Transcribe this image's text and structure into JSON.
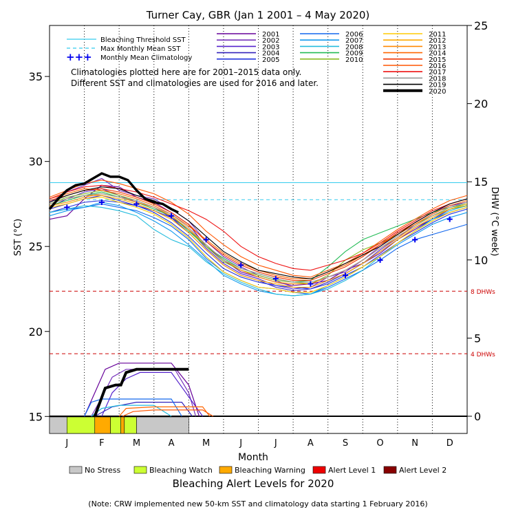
{
  "chart_data": {
    "type": "line",
    "title": "Turner Cay, GBR      (Jan 1 2001 – 4 May 2020)",
    "xlabel": "Month",
    "ylabel_left": "SST (°C)",
    "ylabel_right": "DHW (°C week)",
    "xlim": [
      0,
      12
    ],
    "ylim_left": [
      14,
      38
    ],
    "ylim_right": [
      -1.1,
      25
    ],
    "months": [
      "J",
      "F",
      "M",
      "A",
      "M",
      "J",
      "J",
      "A",
      "S",
      "O",
      "N",
      "D"
    ],
    "yticks_left": [
      15,
      20,
      25,
      30,
      35
    ],
    "yticks_right": [
      0,
      5,
      10,
      15,
      20,
      25
    ],
    "bleaching_threshold_sst": 28.75,
    "max_monthly_mean_sst": 27.75,
    "dhw_reference_lines": [
      {
        "label": "8 DHWs",
        "dhw": 8
      },
      {
        "label": "4 DHWs",
        "dhw": 4
      }
    ],
    "line_legend": [
      {
        "name": "Bleaching Threshold SST",
        "color": "#33ccee",
        "style": "solid"
      },
      {
        "name": "Max Monthly Mean SST",
        "color": "#33ccee",
        "style": "dashed"
      },
      {
        "name": "Monthly Mean Climatology",
        "color": "#0000ee",
        "style": "plus"
      }
    ],
    "note_lines": [
      "Climatologies plotted here are for 2001–2015 data only.",
      "Different SST and climatologies are used for 2016 and later."
    ],
    "climatology": {
      "x": [
        0.5,
        1.5,
        2.5,
        3.5,
        4.5,
        5.5,
        6.5,
        7.5,
        8.5,
        9.5,
        10.5,
        11.5
      ],
      "y": [
        27.3,
        27.6,
        27.5,
        26.8,
        25.4,
        23.9,
        23.1,
        22.8,
        23.3,
        24.2,
        25.4,
        26.6
      ]
    },
    "years": [
      {
        "name": "2001",
        "color": "#660099"
      },
      {
        "name": "2002",
        "color": "#7733bb"
      },
      {
        "name": "2003",
        "color": "#5522cc"
      },
      {
        "name": "2004",
        "color": "#3322bb"
      },
      {
        "name": "2005",
        "color": "#2233dd"
      },
      {
        "name": "2006",
        "color": "#1166ee"
      },
      {
        "name": "2007",
        "color": "#1199ee"
      },
      {
        "name": "2008",
        "color": "#22bbdd"
      },
      {
        "name": "2009",
        "color": "#22bb55"
      },
      {
        "name": "2010",
        "color": "#88bb22"
      },
      {
        "name": "2011",
        "color": "#ffcc00"
      },
      {
        "name": "2012",
        "color": "#ffaa00"
      },
      {
        "name": "2013",
        "color": "#ff8800"
      },
      {
        "name": "2014",
        "color": "#ff6600"
      },
      {
        "name": "2015",
        "color": "#ee3300"
      },
      {
        "name": "2016",
        "color": "#ff5500"
      },
      {
        "name": "2017",
        "color": "#ee1111"
      },
      {
        "name": "2018",
        "color": "#999999"
      },
      {
        "name": "2019",
        "color": "#000000"
      },
      {
        "name": "2020",
        "color": "#000000",
        "bold": true
      }
    ],
    "sst_x": [
      0,
      0.5,
      1,
      1.5,
      2,
      2.5,
      3,
      3.5,
      4,
      4.5,
      5,
      5.5,
      6,
      6.5,
      7,
      7.5,
      8,
      8.5,
      9,
      9.5,
      10,
      10.5,
      11,
      11.5,
      12
    ],
    "sst_series": {
      "2001": [
        26.6,
        26.8,
        27.8,
        28.6,
        28.5,
        27.9,
        27.6,
        27.0,
        26.3,
        25.0,
        24.2,
        23.5,
        23.2,
        22.9,
        22.7,
        22.8,
        23.0,
        23.6,
        24.0,
        24.6,
        25.4,
        26.0,
        26.6,
        27.2,
        27.4
      ],
      "2002": [
        27.6,
        28.2,
        28.6,
        29.0,
        28.3,
        28.0,
        27.8,
        27.2,
        26.5,
        25.3,
        24.4,
        23.8,
        23.3,
        23.0,
        22.6,
        22.6,
        23.2,
        23.5,
        24.2,
        25.0,
        25.8,
        26.4,
        27.0,
        27.4,
        27.6
      ],
      "2003": [
        27.3,
        27.8,
        28.2,
        28.4,
        28.0,
        27.6,
        27.3,
        26.7,
        26.0,
        24.9,
        24.0,
        23.4,
        23.1,
        22.7,
        22.5,
        22.6,
        23.0,
        23.4,
        24.0,
        24.8,
        25.5,
        26.3,
        26.9,
        27.4,
        27.6
      ],
      "2004": [
        27.2,
        27.5,
        27.8,
        28.0,
        27.7,
        27.4,
        27.1,
        26.7,
        25.8,
        24.8,
        23.9,
        23.3,
        23.0,
        22.6,
        22.4,
        22.5,
        22.9,
        23.4,
        24.0,
        24.7,
        25.4,
        26.1,
        26.6,
        27.0,
        27.3
      ],
      "2005": [
        27.0,
        27.3,
        27.6,
        27.7,
        27.6,
        27.4,
        27.0,
        26.4,
        25.6,
        24.6,
        23.7,
        23.2,
        22.9,
        22.7,
        22.6,
        22.5,
        22.8,
        23.3,
        23.8,
        24.5,
        25.2,
        25.8,
        26.4,
        26.9,
        27.2
      ],
      "2006": [
        27.0,
        27.2,
        27.3,
        27.5,
        27.3,
        27.1,
        26.7,
        26.2,
        25.4,
        24.3,
        23.5,
        23.0,
        22.6,
        22.5,
        22.3,
        22.2,
        22.6,
        23.1,
        23.6,
        24.2,
        24.9,
        25.4,
        25.7,
        26.0,
        26.3
      ],
      "2007": [
        26.8,
        27.1,
        27.3,
        27.6,
        27.4,
        27.0,
        26.5,
        25.9,
        25.1,
        24.2,
        23.3,
        22.8,
        22.4,
        22.2,
        22.1,
        22.2,
        22.7,
        23.2,
        23.8,
        24.4,
        25.1,
        25.7,
        26.3,
        26.7,
        27.0
      ],
      "2008": [
        27.0,
        27.2,
        27.4,
        27.3,
        27.1,
        26.8,
        26.0,
        25.4,
        25.0,
        24.1,
        23.4,
        22.9,
        22.5,
        22.2,
        22.1,
        22.2,
        22.5,
        23.0,
        23.6,
        24.4,
        25.2,
        25.9,
        26.6,
        27.1,
        27.4
      ],
      "2009": [
        27.4,
        27.7,
        28.0,
        28.2,
        27.9,
        27.6,
        27.2,
        26.8,
        25.9,
        25.0,
        24.3,
        23.7,
        23.4,
        23.1,
        22.9,
        23.0,
        23.8,
        24.7,
        25.4,
        25.8,
        26.2,
        26.6,
        27.0,
        27.3,
        27.5
      ],
      "2010": [
        27.5,
        27.9,
        28.1,
        28.3,
        28.0,
        27.7,
        27.3,
        26.8,
        26.0,
        25.0,
        24.1,
        23.6,
        23.3,
        23.0,
        22.9,
        22.8,
        23.3,
        24.2,
        24.8,
        25.2,
        25.7,
        26.3,
        26.8,
        27.2,
        27.4
      ],
      "2011": [
        27.3,
        27.5,
        27.8,
        27.9,
        27.6,
        27.3,
        26.9,
        26.3,
        25.5,
        24.4,
        23.5,
        23.0,
        22.6,
        22.5,
        22.3,
        22.3,
        22.7,
        23.2,
        23.8,
        24.4,
        25.2,
        25.9,
        26.5,
        27.0,
        27.3
      ],
      "2012": [
        27.5,
        27.8,
        28.0,
        28.0,
        27.8,
        27.5,
        27.1,
        26.6,
        25.8,
        24.8,
        23.9,
        23.3,
        23.0,
        22.8,
        22.6,
        22.6,
        23.0,
        23.4,
        24.0,
        24.7,
        25.4,
        26.1,
        26.7,
        27.2,
        27.5
      ],
      "2013": [
        27.4,
        27.6,
        27.9,
        28.1,
        27.9,
        27.6,
        27.3,
        26.8,
        26.0,
        25.1,
        24.2,
        23.6,
        23.2,
        22.9,
        22.8,
        22.8,
        23.2,
        23.6,
        24.2,
        24.9,
        25.5,
        26.2,
        26.8,
        27.3,
        27.6
      ],
      "2014": [
        27.8,
        28.1,
        28.4,
        28.3,
        28.1,
        27.8,
        27.4,
        26.9,
        26.2,
        25.4,
        24.6,
        24.0,
        23.6,
        23.3,
        23.1,
        23.1,
        23.5,
        23.9,
        24.5,
        25.1,
        25.7,
        26.3,
        26.9,
        27.4,
        27.7
      ],
      "2015": [
        27.7,
        28.0,
        28.3,
        28.4,
        28.2,
        27.9,
        27.5,
        27.0,
        26.3,
        25.3,
        24.5,
        23.9,
        23.5,
        23.2,
        23.0,
        23.0,
        23.4,
        23.8,
        24.4,
        25.1,
        25.8,
        26.4,
        27.0,
        27.5,
        27.8
      ],
      "2016": [
        27.9,
        28.3,
        28.7,
        28.9,
        28.7,
        28.4,
        28.1,
        27.6,
        26.9,
        25.9,
        25.1,
        24.4,
        23.9,
        23.6,
        23.3,
        23.2,
        23.6,
        24.0,
        24.6,
        25.3,
        26.0,
        26.6,
        27.2,
        27.7,
        28.0
      ],
      "2017": [
        27.8,
        28.2,
        28.5,
        28.6,
        28.4,
        28.2,
        27.9,
        27.5,
        27.1,
        26.6,
        25.9,
        25.0,
        24.4,
        24.0,
        23.7,
        23.6,
        23.9,
        24.2,
        24.6,
        25.2,
        25.9,
        26.5,
        27.1,
        27.5,
        27.8
      ],
      "2018": [
        27.5,
        27.8,
        28.0,
        28.1,
        27.9,
        27.7,
        27.3,
        26.9,
        26.1,
        25.1,
        24.2,
        23.7,
        23.4,
        23.1,
        22.9,
        22.9,
        23.2,
        23.6,
        24.2,
        24.9,
        25.6,
        26.2,
        26.8,
        27.3,
        27.6
      ],
      "2019": [
        27.6,
        28.0,
        28.3,
        28.5,
        28.4,
        28.0,
        27.7,
        27.2,
        26.5,
        25.6,
        24.7,
        24.1,
        23.6,
        23.4,
        23.2,
        23.1,
        23.5,
        24.0,
        24.5,
        25.0,
        25.7,
        26.4,
        27.0,
        27.5,
        27.8
      ]
    },
    "sst_2020": {
      "x": [
        0,
        0.25,
        0.5,
        0.75,
        1.0,
        1.25,
        1.5,
        1.75,
        2.0,
        2.25,
        2.5,
        2.75,
        3.0,
        3.25,
        3.5,
        3.7
      ],
      "y": [
        27.2,
        27.8,
        28.3,
        28.6,
        28.7,
        29.0,
        29.3,
        29.1,
        29.1,
        28.9,
        28.3,
        27.8,
        27.6,
        27.5,
        27.2,
        27.0
      ]
    },
    "dhw_series": {
      "2001": {
        "x": [
          1.0,
          1.3,
          1.6,
          2.0,
          2.5,
          3.0,
          3.5,
          4.0,
          4.3
        ],
        "y": [
          0,
          1.5,
          3.0,
          3.4,
          3.4,
          3.4,
          3.4,
          2.0,
          0
        ]
      },
      "2002": {
        "x": [
          1.2,
          1.5,
          1.8,
          2.2,
          3.0,
          3.6,
          4.0,
          4.2
        ],
        "y": [
          0,
          1.2,
          2.5,
          3.0,
          3.0,
          3.0,
          1.5,
          0
        ]
      },
      "2003": {
        "x": [
          1.5,
          1.8,
          2.2,
          2.6,
          3.0,
          3.5,
          4.4
        ],
        "y": [
          0,
          1.5,
          2.4,
          2.8,
          2.8,
          2.8,
          0
        ]
      },
      "2004": {
        "x": [
          1.3,
          1.8,
          2.5,
          3.3,
          3.8,
          4.1
        ],
        "y": [
          0,
          0.6,
          0.9,
          0.9,
          0.9,
          0
        ]
      },
      "2006": {
        "x": [
          1.0,
          1.2,
          1.5,
          2.0,
          3.0,
          3.5,
          3.8
        ],
        "y": [
          0,
          0.9,
          1.1,
          1.1,
          1.1,
          1.1,
          0
        ]
      },
      "2008": {
        "x": [
          1.2,
          1.5,
          2.0,
          3.0,
          3.5
        ],
        "y": [
          0,
          0.5,
          0.7,
          0.7,
          0
        ]
      },
      "2014": {
        "x": [
          2.0,
          2.2,
          3.0,
          4.4,
          4.6
        ],
        "y": [
          0,
          0.5,
          0.6,
          0.6,
          0
        ]
      },
      "2016": {
        "x": [
          2.1,
          2.4,
          3.0,
          4.4,
          4.7
        ],
        "y": [
          0,
          0.3,
          0.4,
          0.4,
          0
        ]
      },
      "2020": {
        "x": [
          1.3,
          1.6,
          1.9,
          2.05,
          2.2,
          2.5,
          3.0,
          3.5,
          4.0
        ],
        "y": [
          0,
          1.8,
          2.0,
          2.0,
          2.8,
          3.0,
          3.0,
          3.0,
          3.0
        ]
      }
    },
    "alert_bar": [
      {
        "start": 0.0,
        "end": 0.5,
        "level": "No Stress"
      },
      {
        "start": 0.5,
        "end": 1.3,
        "level": "Bleaching Watch"
      },
      {
        "start": 1.3,
        "end": 1.75,
        "level": "Bleaching Warning"
      },
      {
        "start": 1.75,
        "end": 2.05,
        "level": "Bleaching Watch"
      },
      {
        "start": 2.05,
        "end": 2.15,
        "level": "Bleaching Warning"
      },
      {
        "start": 2.15,
        "end": 2.5,
        "level": "Bleaching Watch"
      },
      {
        "start": 2.5,
        "end": 4.0,
        "level": "No Stress"
      }
    ],
    "alert_levels_title": "Bleaching Alert Levels for 2020",
    "alert_levels": [
      {
        "name": "No Stress",
        "color": "#c8c8c8"
      },
      {
        "name": "Bleaching Watch",
        "color": "#ccff33"
      },
      {
        "name": "Bleaching Warning",
        "color": "#ffaa00"
      },
      {
        "name": "Alert Level 1",
        "color": "#ee0000"
      },
      {
        "name": "Alert Level 2",
        "color": "#880000"
      }
    ],
    "footnote": "(Note: CRW implemented new 50-km SST and climatology data starting 1 February 2016)"
  },
  "colors": {
    "threshold": "#33ccee",
    "dhw_ref": "#cc0000",
    "climatology": "#0000ee"
  }
}
